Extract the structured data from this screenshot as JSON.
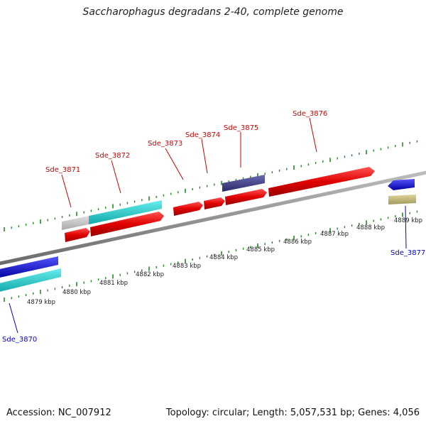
{
  "header": {
    "title": "Saccharophagus degradans 2-40, complete genome"
  },
  "footer": {
    "accession": "Accession: NC_007912",
    "summary": "Topology: circular; Length: 5,057,531 bp; Genes: 4,056"
  },
  "genes_top": [
    "Sde_3871",
    "Sde_3872",
    "Sde_3873",
    "Sde_3874",
    "Sde_3875",
    "Sde_3876"
  ],
  "genes_bottom": [
    "Sde_3870",
    "Sde_3877"
  ],
  "scale_ticks": [
    "4879 kbp",
    "4880 kbp",
    "4881 kbp",
    "4882 kbp",
    "4883 kbp",
    "4884 kbp",
    "4885 kbp",
    "4886 kbp",
    "4887 kbp",
    "4888 kbp",
    "4889 kbp"
  ],
  "colors": {
    "forward_cds": "#e00000",
    "reverse_cds": "#0000dd",
    "cyan_feature": "#22cccc",
    "gray_feature": "#c0c0c0",
    "navy_feature": "#3b3b8a",
    "olive_feature": "#c2b87a",
    "backbone": "#8a8a8a",
    "tick_green": "#228b22",
    "label_red": "#cc0000",
    "label_blue": "#0000cc"
  }
}
